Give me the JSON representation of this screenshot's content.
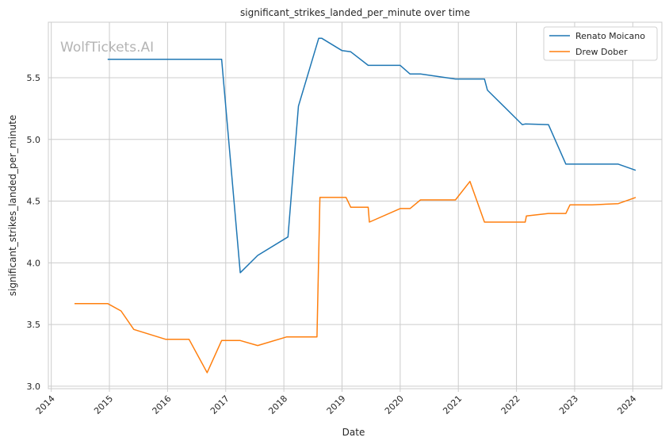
{
  "chart_data": {
    "type": "line",
    "title": "significant_strikes_landed_per_minute over time",
    "xlabel": "Date",
    "ylabel": "significant_strikes_landed_per_minute",
    "watermark": "WolfTickets.AI",
    "xlim": [
      2013.95,
      2024.5
    ],
    "ylim": [
      2.98,
      5.95
    ],
    "x_ticks": [
      2014,
      2015,
      2016,
      2017,
      2018,
      2019,
      2020,
      2021,
      2022,
      2023,
      2024
    ],
    "x_tick_labels": [
      "2014",
      "2015",
      "2016",
      "2017",
      "2018",
      "2019",
      "2020",
      "2021",
      "2022",
      "2023",
      "2024"
    ],
    "y_ticks": [
      3.0,
      3.5,
      4.0,
      4.5,
      5.0,
      5.5
    ],
    "y_tick_labels": [
      "3.0",
      "3.5",
      "4.0",
      "4.5",
      "5.0",
      "5.5"
    ],
    "grid": true,
    "legend_position": "top-right",
    "series": [
      {
        "name": "Renato Moicano",
        "color": "#1f77b4",
        "x": [
          2014.97,
          2015.5,
          2016.0,
          2016.5,
          2016.93,
          2017.25,
          2017.55,
          2018.07,
          2018.25,
          2018.6,
          2018.65,
          2019.0,
          2019.15,
          2019.45,
          2019.75,
          2020.0,
          2020.17,
          2020.35,
          2020.95,
          2021.45,
          2021.5,
          2022.1,
          2022.15,
          2022.55,
          2022.85,
          2023.0,
          2023.75,
          2024.05
        ],
        "y": [
          5.65,
          5.65,
          5.65,
          5.65,
          5.65,
          3.92,
          4.06,
          4.21,
          5.27,
          5.82,
          5.82,
          5.72,
          5.71,
          5.6,
          5.6,
          5.6,
          5.53,
          5.53,
          5.49,
          5.49,
          5.4,
          5.12,
          5.125,
          5.12,
          4.8,
          4.8,
          4.8,
          4.75
        ]
      },
      {
        "name": "Drew Dober",
        "color": "#ff7f0e",
        "x": [
          2014.4,
          2014.97,
          2015.2,
          2015.42,
          2015.97,
          2016.37,
          2016.68,
          2016.93,
          2017.25,
          2017.55,
          2018.05,
          2018.57,
          2018.62,
          2019.07,
          2019.15,
          2019.45,
          2019.47,
          2020.0,
          2020.17,
          2020.35,
          2020.95,
          2021.2,
          2021.45,
          2022.15,
          2022.17,
          2022.55,
          2022.85,
          2022.92,
          2023.3,
          2023.75,
          2024.05
        ],
        "y": [
          3.67,
          3.67,
          3.61,
          3.46,
          3.38,
          3.38,
          3.11,
          3.37,
          3.37,
          3.33,
          3.4,
          3.4,
          4.53,
          4.53,
          4.45,
          4.45,
          4.33,
          4.44,
          4.44,
          4.51,
          4.51,
          4.66,
          4.33,
          4.33,
          4.38,
          4.4,
          4.4,
          4.47,
          4.47,
          4.48,
          4.53
        ]
      }
    ]
  }
}
